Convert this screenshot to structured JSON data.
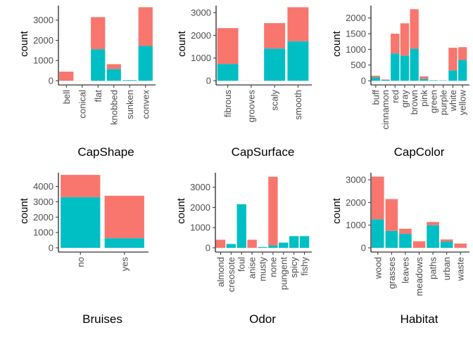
{
  "colors": {
    "edible": "#00BFC4",
    "poisonous": "#F8766D"
  },
  "chart_data": [
    {
      "type": "bar",
      "stacked": true,
      "xlabel": "CapShape",
      "ylabel": "count",
      "ylim": [
        0,
        3650
      ],
      "yticks": [
        0,
        1000,
        2000,
        3000
      ],
      "categories": [
        "bell",
        "conical",
        "flat",
        "knobbed",
        "sunken",
        "convex"
      ],
      "series": [
        {
          "color": "#00BFC4",
          "values": [
            0,
            0,
            1560,
            580,
            30,
            1720
          ]
        },
        {
          "color": "#F8766D",
          "values": [
            450,
            5,
            1590,
            240,
            0,
            1920
          ]
        }
      ]
    },
    {
      "type": "bar",
      "stacked": true,
      "xlabel": "CapSurface",
      "ylabel": "count",
      "ylim": [
        0,
        3250
      ],
      "yticks": [
        0,
        1000,
        2000,
        3000
      ],
      "categories": [
        "fibrous",
        "grooves",
        "scaly",
        "smooth"
      ],
      "series": [
        {
          "color": "#00BFC4",
          "values": [
            740,
            0,
            1420,
            1740
          ]
        },
        {
          "color": "#F8766D",
          "values": [
            1580,
            5,
            1120,
            1500
          ]
        }
      ]
    },
    {
      "type": "bar",
      "stacked": true,
      "xlabel": "CapColor",
      "ylabel": "count",
      "ylim": [
        0,
        2350
      ],
      "yticks": [
        0,
        500,
        1000,
        1500,
        2000
      ],
      "categories": [
        "buff",
        "cinnamon",
        "red",
        "gray",
        "brown",
        "pink",
        "green",
        "purple",
        "white",
        "yellow"
      ],
      "series": [
        {
          "color": "#00BFC4",
          "values": [
            110,
            25,
            870,
            800,
            1020,
            60,
            15,
            10,
            330,
            660
          ]
        },
        {
          "color": "#F8766D",
          "values": [
            50,
            15,
            630,
            1030,
            1260,
            80,
            0,
            0,
            720,
            410
          ]
        }
      ]
    },
    {
      "type": "bar",
      "stacked": true,
      "xlabel": "Bruises",
      "ylabel": "count",
      "ylim": [
        0,
        4800
      ],
      "yticks": [
        0,
        1000,
        2000,
        3000,
        4000
      ],
      "categories": [
        "no",
        "yes"
      ],
      "series": [
        {
          "color": "#00BFC4",
          "values": [
            3300,
            630
          ]
        },
        {
          "color": "#F8766D",
          "values": [
            1450,
            2760
          ]
        }
      ]
    },
    {
      "type": "bar",
      "stacked": true,
      "xlabel": "Odor",
      "ylabel": "count",
      "ylim": [
        0,
        3650
      ],
      "yticks": [
        0,
        1000,
        2000,
        3000
      ],
      "categories": [
        "almond",
        "creosote",
        "foul",
        "anise",
        "musty",
        "none",
        "pungent",
        "spicy",
        "fishy"
      ],
      "series": [
        {
          "color": "#00BFC4",
          "values": [
            0,
            190,
            2160,
            0,
            40,
            120,
            260,
            580,
            580
          ]
        },
        {
          "color": "#F8766D",
          "values": [
            400,
            0,
            0,
            400,
            0,
            3400,
            0,
            0,
            0
          ]
        }
      ]
    },
    {
      "type": "bar",
      "stacked": true,
      "xlabel": "Habitat",
      "ylabel": "count",
      "ylim": [
        0,
        3250
      ],
      "yticks": [
        0,
        1000,
        2000,
        3000
      ],
      "categories": [
        "wood",
        "grasses",
        "leaves",
        "meadows",
        "paths",
        "urban",
        "waste"
      ],
      "series": [
        {
          "color": "#00BFC4",
          "values": [
            1260,
            750,
            620,
            0,
            1000,
            280,
            0
          ]
        },
        {
          "color": "#F8766D",
          "values": [
            1880,
            1400,
            220,
            290,
            140,
            90,
            190
          ]
        }
      ]
    }
  ]
}
